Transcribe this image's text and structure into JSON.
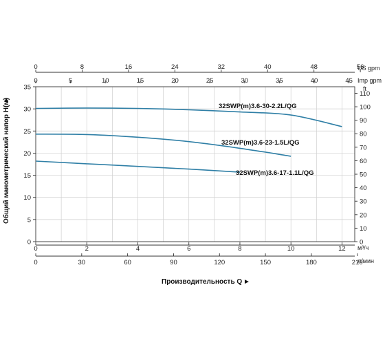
{
  "chart_data": {
    "type": "line",
    "title": "",
    "xlabel": "Производительность Q",
    "ylabel": "Общий манометрический напор H(м)",
    "xlim": [
      0,
      12.5
    ],
    "ylim": [
      0,
      35
    ],
    "grid": true,
    "x_ticks": [
      "0",
      "2",
      "4",
      "6",
      "8",
      "10",
      "12"
    ],
    "x_unit": "м³/ч",
    "y_ticks": [
      "0",
      "5",
      "10",
      "15",
      "20",
      "25",
      "30",
      "35"
    ],
    "top_axes": [
      {
        "unit": "US gpm",
        "ticks": [
          "0",
          "8",
          "16",
          "24",
          "32",
          "40",
          "48",
          "56"
        ]
      },
      {
        "unit": "Imp gpm",
        "ticks": [
          "0",
          "5",
          "10",
          "15",
          "20",
          "25",
          "30",
          "35",
          "40",
          "45"
        ]
      }
    ],
    "bottom_axis2": {
      "unit": "л/мин",
      "ticks": [
        "0",
        "30",
        "60",
        "90",
        "120",
        "150",
        "180",
        "210"
      ]
    },
    "right_axis": {
      "unit": "ft",
      "ticks": [
        "0",
        "10",
        "20",
        "30",
        "40",
        "50",
        "60",
        "70",
        "80",
        "90",
        "100",
        "110"
      ]
    },
    "series": [
      {
        "name": "32SWP(m)3.6-30-2.2L/QG",
        "color": "#2f7fa6",
        "x": [
          0,
          2,
          4,
          6,
          8,
          10,
          12
        ],
        "y": [
          30.1,
          30.2,
          30.1,
          29.8,
          29.3,
          28.6,
          26.0
        ]
      },
      {
        "name": "32SWP(m)3.6-23-1.5L/QG",
        "color": "#2f7fa6",
        "x": [
          0,
          2,
          4,
          6,
          8,
          10
        ],
        "y": [
          24.3,
          24.2,
          23.6,
          22.6,
          21.1,
          19.3
        ]
      },
      {
        "name": "32SWP(m)3.6-17-1.1L/QG",
        "color": "#2f7fa6",
        "x": [
          0,
          2,
          4,
          6,
          8
        ],
        "y": [
          18.2,
          17.6,
          17.0,
          16.4,
          15.7
        ]
      }
    ]
  }
}
